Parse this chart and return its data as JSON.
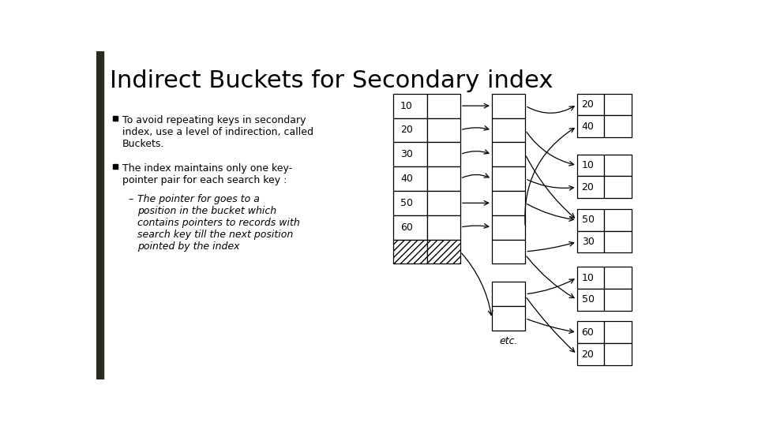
{
  "title": "Indirect Buckets for Secondary index",
  "title_fontsize": 22,
  "background_color": "#ffffff",
  "bullet1": "To avoid repeating keys in secondary\nindex, use a level of indirection, called\nBuckets.",
  "bullet2": "The index maintains only one key-\npointer pair for each search key :",
  "bullet3": "The pointer for goes to a\nposition in the bucket which\ncontains pointers to records with\nsearch key till the next position\npointed by the index",
  "left_bar_width": 0.012,
  "idx1_keys": [
    "10",
    "20",
    "30",
    "40"
  ],
  "idx2_keys": [
    "50",
    "60"
  ],
  "rg1_labels": [
    "20",
    "40"
  ],
  "rg2_labels": [
    "10",
    "20"
  ],
  "rg3_labels": [
    "50",
    "30"
  ],
  "rg4_labels": [
    "10",
    "50"
  ],
  "rg5_labels": [
    "60",
    "20"
  ]
}
